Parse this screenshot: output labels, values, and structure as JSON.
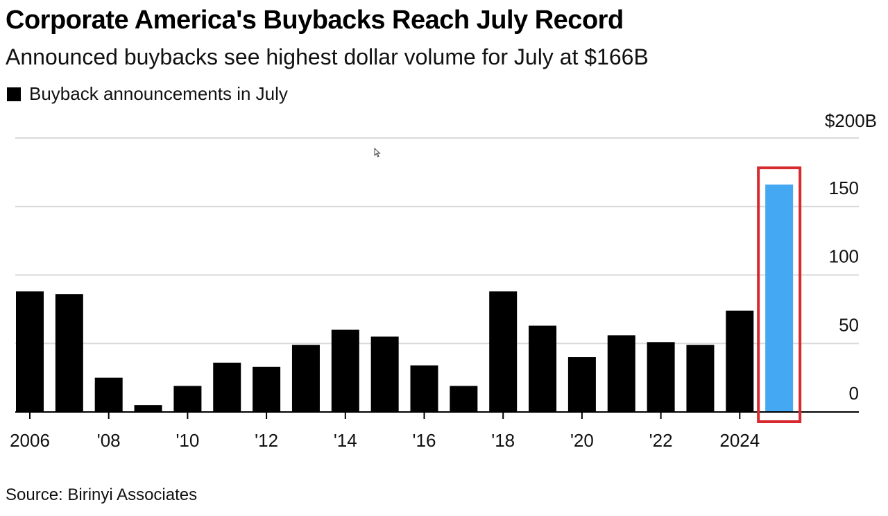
{
  "title": "Corporate America's Buybacks Reach July Record",
  "subtitle": "Announced buybacks see highest dollar volume for July at $166B",
  "legend_label": "Buyback announcements in July",
  "source": "Source: Birinyi Associates",
  "colors": {
    "bar": "#000000",
    "highlight_bar": "#45a8f2",
    "highlight_box": "#d62a2f",
    "grid": "#d9d9d9"
  },
  "chart_data": {
    "type": "bar",
    "title": "Corporate America's Buybacks Reach July Record",
    "subtitle": "Announced buybacks see highest dollar volume for July at $166B",
    "legend": [
      "Buyback announcements in July"
    ],
    "legend_placement": "top-left",
    "categories": [
      "2006",
      "2007",
      "2008",
      "2009",
      "2010",
      "2011",
      "2012",
      "2013",
      "2014",
      "2015",
      "2016",
      "2017",
      "2018",
      "2019",
      "2020",
      "2021",
      "2022",
      "2023",
      "2024",
      "2025"
    ],
    "values": [
      88,
      86,
      25,
      5,
      19,
      36,
      33,
      49,
      60,
      55,
      34,
      19,
      88,
      63,
      40,
      56,
      51,
      49,
      74,
      166
    ],
    "highlight_index": 19,
    "ylim": [
      0,
      200
    ],
    "yticks": [
      {
        "value": 0,
        "label": "0"
      },
      {
        "value": 50,
        "label": "50"
      },
      {
        "value": 100,
        "label": "100"
      },
      {
        "value": 150,
        "label": "150"
      },
      {
        "value": 200,
        "label": "$200B"
      }
    ],
    "xticks": [
      {
        "index": 0,
        "label": "2006"
      },
      {
        "index": 2,
        "label": "'08"
      },
      {
        "index": 4,
        "label": "'10"
      },
      {
        "index": 6,
        "label": "'12"
      },
      {
        "index": 8,
        "label": "'14"
      },
      {
        "index": 10,
        "label": "'16"
      },
      {
        "index": 12,
        "label": "'18"
      },
      {
        "index": 14,
        "label": "'20"
      },
      {
        "index": 16,
        "label": "'22"
      },
      {
        "index": 18,
        "label": "2024"
      }
    ],
    "grid": true,
    "yaxis_side": "right"
  }
}
